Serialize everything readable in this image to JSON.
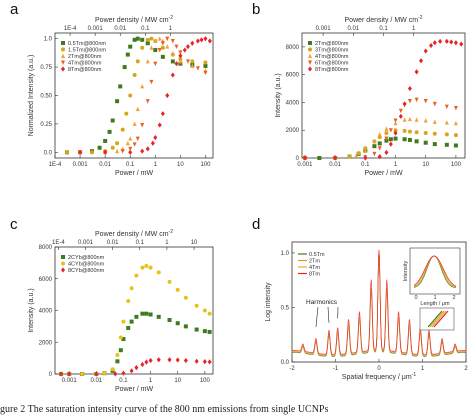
{
  "caption": "gure 2 The saturation intensity curve of the 800 nm emissions from single UCNPs",
  "chart_data": [
    {
      "panel": "a",
      "type": "scatter",
      "xlabel": "Power / mW",
      "ylabel": "Normalized Intensity (a.u.)",
      "x2label": "Power density / MW cm",
      "x2label_sup": "-2",
      "xscale": "log",
      "xlim": [
        0.0001,
        200
      ],
      "ylim": [
        -0.05,
        1.05
      ],
      "x_ticks": [
        0.0001,
        0.001,
        0.01,
        0.1,
        1,
        10,
        100
      ],
      "x_tick_labels": [
        "1E-4",
        "0.001",
        "0.01",
        "0.1",
        "1",
        "10",
        "100"
      ],
      "y_ticks": [
        0,
        0.25,
        0.5,
        0.75,
        1
      ],
      "y_tick_labels": [
        "0.0",
        "0.25",
        "0.50",
        "0.75",
        "1.0"
      ],
      "x2_ticks": [
        0.0004,
        0.004,
        0.04,
        0.4,
        4
      ],
      "x2_tick_labels": [
        "1E-4",
        "0.001",
        "0.01",
        "0.1",
        "1"
      ],
      "legend_position": "top-left",
      "series": [
        {
          "name": "0.5Tm@800nm",
          "color": "#3f7a1e",
          "marker": "square",
          "x": [
            0.0003,
            0.001,
            0.003,
            0.006,
            0.01,
            0.015,
            0.02,
            0.03,
            0.04,
            0.06,
            0.08,
            0.1,
            0.15,
            0.2,
            0.3,
            0.5,
            1,
            2,
            5,
            10,
            30,
            100
          ],
          "y": [
            0,
            0,
            0.01,
            0.04,
            0.1,
            0.18,
            0.28,
            0.45,
            0.58,
            0.75,
            0.86,
            0.93,
            0.99,
            1.0,
            0.99,
            0.96,
            0.9,
            0.84,
            0.8,
            0.78,
            0.77,
            0.76
          ]
        },
        {
          "name": "1.5Tm@800nm",
          "color": "#d6a51a",
          "marker": "circle",
          "x": [
            0.0003,
            0.001,
            0.003,
            0.01,
            0.02,
            0.03,
            0.05,
            0.07,
            0.1,
            0.15,
            0.2,
            0.3,
            0.5,
            0.7,
            1,
            2,
            5,
            10,
            30,
            100
          ],
          "y": [
            0,
            0,
            0,
            0.01,
            0.04,
            0.08,
            0.2,
            0.34,
            0.5,
            0.68,
            0.8,
            0.92,
            0.99,
            1.0,
            0.98,
            0.92,
            0.86,
            0.82,
            0.8,
            0.79
          ]
        },
        {
          "name": "2Tm@800nm",
          "color": "#f0a23a",
          "marker": "triangle-up",
          "x": [
            0.001,
            0.01,
            0.03,
            0.05,
            0.08,
            0.1,
            0.15,
            0.2,
            0.3,
            0.5,
            0.7,
            1,
            1.5,
            2,
            3,
            5,
            10,
            30,
            100
          ],
          "y": [
            0,
            0,
            0.01,
            0.03,
            0.08,
            0.12,
            0.25,
            0.38,
            0.58,
            0.8,
            0.92,
            0.98,
            1.0,
            0.98,
            0.93,
            0.87,
            0.8,
            0.76,
            0.72
          ]
        },
        {
          "name": "4Tm@800nm",
          "color": "#e8631f",
          "marker": "triangle-down",
          "x": [
            0.001,
            0.01,
            0.05,
            0.1,
            0.15,
            0.2,
            0.3,
            0.5,
            0.7,
            1,
            1.5,
            2,
            3,
            5,
            7,
            10,
            20,
            50,
            100
          ],
          "y": [
            0,
            0,
            0.01,
            0.03,
            0.07,
            0.12,
            0.24,
            0.45,
            0.62,
            0.78,
            0.9,
            0.96,
            1.0,
            0.98,
            0.93,
            0.88,
            0.8,
            0.74,
            0.7
          ]
        },
        {
          "name": "8Tm@800nm",
          "color": "#e8232a",
          "marker": "diamond",
          "x": [
            0.001,
            0.01,
            0.1,
            0.3,
            0.5,
            0.8,
            1,
            1.5,
            2,
            3,
            5,
            7,
            10,
            15,
            20,
            30,
            50,
            70,
            100,
            150
          ],
          "y": [
            0,
            0,
            0,
            0.01,
            0.03,
            0.08,
            0.13,
            0.24,
            0.34,
            0.5,
            0.68,
            0.78,
            0.85,
            0.9,
            0.93,
            0.96,
            0.98,
            0.99,
            1.0,
            0.98
          ]
        }
      ]
    },
    {
      "panel": "b",
      "type": "scatter",
      "xlabel": "Power / mW",
      "ylabel": "Intensity (a.u.)",
      "x2label": "Power density / MW cm",
      "x2label_sup": "-2",
      "xscale": "log",
      "xlim": [
        0.0008,
        200
      ],
      "ylim": [
        0,
        9000
      ],
      "x_ticks": [
        0.001,
        0.01,
        0.1,
        1,
        10,
        100
      ],
      "x_tick_labels": [
        "0.001",
        "0.01",
        "0.1",
        "1",
        "10",
        "100"
      ],
      "y_ticks": [
        0,
        2000,
        4000,
        6000,
        8000
      ],
      "y_tick_labels": [
        "0",
        "2000",
        "4000",
        "6000",
        "8000"
      ],
      "x2_ticks": [
        0.004,
        0.04,
        0.4,
        4
      ],
      "x2_tick_labels": [
        "0.001",
        "0.01",
        "0.1",
        "1"
      ],
      "legend_position": "top-left",
      "series": [
        {
          "name": "2Tm@800nm",
          "color": "#3f7a1e",
          "marker": "square",
          "x": [
            0.001,
            0.003,
            0.01,
            0.03,
            0.06,
            0.1,
            0.2,
            0.3,
            0.5,
            0.7,
            1,
            2,
            3,
            5,
            10,
            20,
            50,
            100
          ],
          "y": [
            0,
            0,
            0,
            100,
            300,
            550,
            850,
            1050,
            1250,
            1350,
            1400,
            1350,
            1300,
            1200,
            1100,
            1000,
            950,
            900
          ]
        },
        {
          "name": "3Tm@800nm",
          "color": "#d6a51a",
          "marker": "circle",
          "x": [
            0.001,
            0.01,
            0.03,
            0.06,
            0.1,
            0.2,
            0.3,
            0.5,
            1,
            2,
            3,
            5,
            10,
            20,
            50,
            100
          ],
          "y": [
            0,
            0,
            100,
            350,
            700,
            1200,
            1500,
            1800,
            2000,
            1950,
            1900,
            1850,
            1800,
            1750,
            1700,
            1650
          ]
        },
        {
          "name": "4Tm@800nm",
          "color": "#f0a23a",
          "marker": "triangle-up",
          "x": [
            0.001,
            0.01,
            0.05,
            0.1,
            0.2,
            0.3,
            0.5,
            1,
            2,
            3,
            5,
            10,
            20,
            50,
            100
          ],
          "y": [
            0,
            0,
            150,
            500,
            1200,
            1700,
            2100,
            2500,
            2750,
            2800,
            2750,
            2700,
            2600,
            2550,
            2500
          ]
        },
        {
          "name": "6Tm@800nm",
          "color": "#e8631f",
          "marker": "triangle-down",
          "x": [
            0.001,
            0.01,
            0.1,
            0.2,
            0.3,
            0.5,
            0.7,
            1,
            1.5,
            2,
            3,
            5,
            10,
            20,
            50,
            100
          ],
          "y": [
            0,
            0,
            50,
            300,
            700,
            1400,
            2000,
            2700,
            3400,
            3800,
            4100,
            4200,
            4100,
            3900,
            3700,
            3600
          ]
        },
        {
          "name": "8Tm@800nm",
          "color": "#e8232a",
          "marker": "diamond",
          "x": [
            0.001,
            0.01,
            0.1,
            0.3,
            0.5,
            0.7,
            1,
            1.5,
            2,
            3,
            5,
            7,
            10,
            15,
            20,
            30,
            50,
            70,
            100,
            150
          ],
          "y": [
            0,
            0,
            0,
            100,
            400,
            1000,
            1800,
            3000,
            3900,
            5000,
            6200,
            7000,
            7700,
            8100,
            8300,
            8400,
            8400,
            8350,
            8300,
            8200
          ]
        }
      ]
    },
    {
      "panel": "c",
      "type": "scatter",
      "xlabel": "Power / mW",
      "ylabel": "Intensity (a.u.)",
      "x2label": "Power density / MW cm",
      "x2label_sup": "-2",
      "xscale": "log",
      "xlim": [
        0.0003,
        200
      ],
      "ylim": [
        0,
        8000
      ],
      "x_ticks": [
        0.001,
        0.01,
        0.1,
        1,
        10,
        100
      ],
      "x_tick_labels": [
        "0.001",
        "0.01",
        "0.1",
        "1",
        "10",
        "100"
      ],
      "y_ticks": [
        0,
        2000,
        4000,
        6000,
        8000
      ],
      "y_tick_labels": [
        "0",
        "2000",
        "4000",
        "6000",
        "8000"
      ],
      "x2_ticks": [
        0.0004,
        0.004,
        0.04,
        0.4,
        4,
        40
      ],
      "x2_tick_labels": [
        "1E-4",
        "0.001",
        "0.01",
        "0.1",
        "1",
        "10"
      ],
      "legend_position": "top-left",
      "series": [
        {
          "name": "2CYb@800nm",
          "color": "#3f7a1e",
          "marker": "square",
          "x": [
            0.0005,
            0.001,
            0.003,
            0.01,
            0.02,
            0.04,
            0.06,
            0.08,
            0.1,
            0.15,
            0.2,
            0.3,
            0.5,
            0.7,
            1,
            2,
            5,
            10,
            20,
            50,
            100,
            150
          ],
          "y": [
            0,
            0,
            0,
            0,
            50,
            200,
            800,
            1500,
            2200,
            2900,
            3300,
            3600,
            3800,
            3800,
            3750,
            3600,
            3400,
            3200,
            3000,
            2800,
            2700,
            2650
          ]
        },
        {
          "name": "4CYb@800nm",
          "color": "#e5c319",
          "marker": "circle",
          "x": [
            0.0005,
            0.001,
            0.003,
            0.01,
            0.02,
            0.04,
            0.06,
            0.08,
            0.1,
            0.15,
            0.2,
            0.3,
            0.5,
            0.7,
            1,
            2,
            5,
            10,
            20,
            50,
            100,
            150
          ],
          "y": [
            0,
            0,
            0,
            0,
            50,
            300,
            1200,
            2300,
            3300,
            4600,
            5400,
            6200,
            6700,
            6800,
            6700,
            6400,
            5800,
            5300,
            4800,
            4300,
            4000,
            3800
          ]
        },
        {
          "name": "8CYb@800nm",
          "color": "#e8232a",
          "marker": "diamond",
          "x": [
            0.0005,
            0.001,
            0.01,
            0.05,
            0.1,
            0.2,
            0.3,
            0.5,
            0.7,
            1,
            2,
            5,
            10,
            20,
            50,
            100,
            150
          ],
          "y": [
            0,
            0,
            0,
            10,
            50,
            200,
            400,
            600,
            750,
            850,
            900,
            900,
            880,
            850,
            800,
            780,
            760
          ]
        }
      ]
    },
    {
      "panel": "d",
      "type": "line",
      "xlabel": "Spatial frequency / μm",
      "xlabel_sup": "-1",
      "ylabel": "Log intensity",
      "xlim": [
        -2,
        2
      ],
      "ylim": [
        0,
        1.1
      ],
      "x_ticks": [
        -2,
        -1,
        0,
        1,
        2
      ],
      "x_tick_labels": [
        "-2",
        "-1",
        "0",
        "1",
        "2"
      ],
      "y_ticks": [
        0,
        0.5,
        1.0
      ],
      "y_tick_labels": [
        "0.0",
        "0.5",
        "1.0"
      ],
      "annotation": "Harmonics",
      "legend_position": "top-left",
      "series": [
        {
          "name": "0.5Tm",
          "color": "#3f7a1e"
        },
        {
          "name": "2Tm",
          "color": "#d6a51a"
        },
        {
          "name": "4Tm",
          "color": "#f0a23a"
        },
        {
          "name": "8Tm",
          "color": "#e8232a"
        }
      ],
      "peaks": [
        {
          "x": -1.75,
          "height": 0.06
        },
        {
          "x": -1.45,
          "height": 0.12
        },
        {
          "x": -1.15,
          "height": 0.2
        },
        {
          "x": -0.95,
          "height": 0.22
        },
        {
          "x": -0.7,
          "height": 0.28
        },
        {
          "x": -0.45,
          "height": 0.33
        },
        {
          "x": -0.18,
          "height": 0.58
        },
        {
          "x": 0,
          "height": 0.92
        },
        {
          "x": 0.18,
          "height": 0.58
        },
        {
          "x": 0.45,
          "height": 0.33
        },
        {
          "x": 0.7,
          "height": 0.28
        },
        {
          "x": 0.95,
          "height": 0.22
        },
        {
          "x": 1.15,
          "height": 0.2
        },
        {
          "x": 1.45,
          "height": 0.12
        },
        {
          "x": 1.75,
          "height": 0.06
        }
      ],
      "inset": {
        "xlabel": "Length / μm",
        "ylabel": "Intensity",
        "x_tick_labels": [
          "0",
          "1",
          "2"
        ]
      }
    }
  ]
}
